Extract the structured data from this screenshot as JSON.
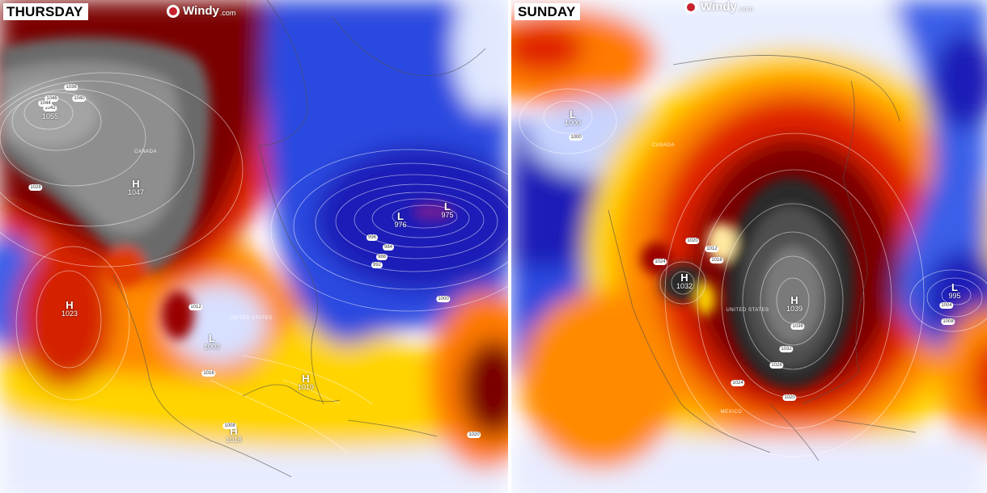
{
  "left_panel": {
    "day": "THURSDAY",
    "brand": "Windy",
    "brand_suffix": ".com",
    "pressure_centers": [
      {
        "type": "H",
        "value": "1055"
      },
      {
        "type": "H",
        "value": "1047"
      },
      {
        "type": "H",
        "value": "1023"
      },
      {
        "type": "L",
        "value": "976"
      },
      {
        "type": "L",
        "value": "975"
      },
      {
        "type": "L",
        "value": "1003"
      },
      {
        "type": "H",
        "value": "1019"
      },
      {
        "type": "H",
        "value": "1018"
      }
    ],
    "isobars": [
      "1036",
      "1046",
      "1042",
      "1040",
      "1044",
      "1028",
      "984",
      "988",
      "992",
      "996",
      "1000",
      "1012",
      "1016",
      "1008",
      "1020"
    ],
    "places": [
      "CANADA",
      "UNITED STATES"
    ]
  },
  "right_panel": {
    "day": "SUNDAY",
    "brand": "Windy",
    "brand_suffix": ".com",
    "pressure_centers": [
      {
        "type": "L",
        "value": "1000"
      },
      {
        "type": "H",
        "value": "1032"
      },
      {
        "type": "H",
        "value": "1039"
      },
      {
        "type": "L",
        "value": "995"
      }
    ],
    "isobars": [
      "1012",
      "1020",
      "1024",
      "1016",
      "1036",
      "1032",
      "1028",
      "1024",
      "1020",
      "1000",
      "1004",
      "1008"
    ],
    "places": [
      "CANADA",
      "UNITED STATES",
      "MEXICO"
    ]
  },
  "colors": {
    "extreme_heat": "#2a2a2a",
    "very_hot": "#6b0000",
    "hot": "#d42400",
    "warm": "#ff8c00",
    "mild": "#ffe000",
    "cool": "#f0f4ff",
    "cold": "#3a5ee8",
    "very_cold": "#1a1ab0"
  }
}
